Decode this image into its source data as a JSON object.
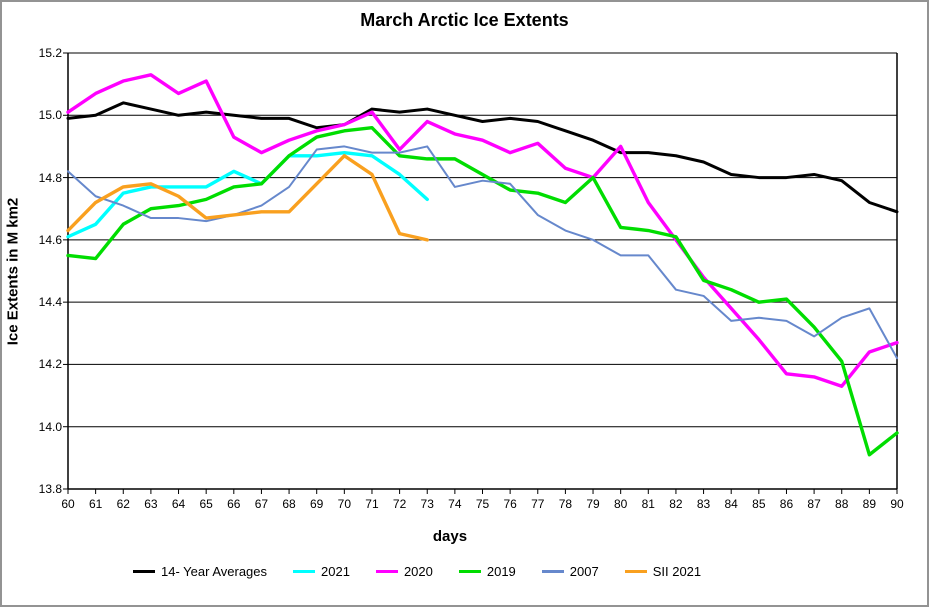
{
  "title": "March Arctic Ice Extents",
  "x_axis_label": "days",
  "y_axis_label": "Ice Extents in M km2",
  "frame_color": "#939393",
  "chart_data": {
    "type": "line",
    "title": "March Arctic Ice Extents",
    "xlabel": "days",
    "ylabel": "Ice Extents in M km2",
    "xlim": [
      60,
      90
    ],
    "ylim": [
      13.8,
      15.2
    ],
    "grid": "horizontal",
    "legend_position": "bottom",
    "x_ticks": [
      60,
      61,
      62,
      63,
      64,
      65,
      66,
      67,
      68,
      69,
      70,
      71,
      72,
      73,
      74,
      75,
      76,
      77,
      78,
      79,
      80,
      81,
      82,
      83,
      84,
      85,
      86,
      87,
      88,
      89,
      90
    ],
    "y_ticks": [
      "13.8",
      "14.0",
      "14.2",
      "14.4",
      "14.6",
      "14.8",
      "15.0",
      "15.2"
    ],
    "series": [
      {
        "name": "14- Year Averages",
        "color": "#000000",
        "stroke_width": 3,
        "x_start": 60,
        "values": [
          14.99,
          15.0,
          15.04,
          15.02,
          15.0,
          15.01,
          15.0,
          14.99,
          14.99,
          14.96,
          14.97,
          15.02,
          15.01,
          15.02,
          15.0,
          14.98,
          14.99,
          14.98,
          14.95,
          14.92,
          14.88,
          14.88,
          14.87,
          14.85,
          14.81,
          14.8,
          14.8,
          14.81,
          14.79,
          14.72,
          14.69
        ]
      },
      {
        "name": "2021",
        "color": "#00ffff",
        "stroke_width": 3.4,
        "x_start": 60,
        "values": [
          14.61,
          14.65,
          14.75,
          14.77,
          14.77,
          14.77,
          14.82,
          14.78,
          14.87,
          14.87,
          14.88,
          14.87,
          14.81,
          14.73
        ]
      },
      {
        "name": "2020",
        "color": "#ff00ff",
        "stroke_width": 3.4,
        "x_start": 60,
        "values": [
          15.01,
          15.07,
          15.11,
          15.13,
          15.07,
          15.11,
          14.93,
          14.88,
          14.92,
          14.95,
          14.97,
          15.01,
          14.89,
          14.98,
          14.94,
          14.92,
          14.88,
          14.91,
          14.83,
          14.8,
          14.9,
          14.72,
          14.6,
          14.48,
          14.38,
          14.28,
          14.17,
          14.16,
          14.13,
          14.24,
          14.27
        ]
      },
      {
        "name": "2019",
        "color": "#00dd00",
        "stroke_width": 3.4,
        "x_start": 60,
        "values": [
          14.55,
          14.54,
          14.65,
          14.7,
          14.71,
          14.73,
          14.77,
          14.78,
          14.87,
          14.93,
          14.95,
          14.96,
          14.87,
          14.86,
          14.86,
          14.81,
          14.76,
          14.75,
          14.72,
          14.8,
          14.64,
          14.63,
          14.61,
          14.47,
          14.44,
          14.4,
          14.41,
          14.32,
          14.21,
          13.91,
          13.98
        ]
      },
      {
        "name": "2007",
        "color": "#6688cc",
        "stroke_width": 2,
        "x_start": 60,
        "values": [
          14.82,
          14.74,
          14.71,
          14.67,
          14.67,
          14.66,
          14.68,
          14.71,
          14.77,
          14.89,
          14.9,
          14.88,
          14.88,
          14.9,
          14.77,
          14.79,
          14.78,
          14.68,
          14.63,
          14.6,
          14.55,
          14.55,
          14.44,
          14.42,
          14.34,
          14.35,
          14.34,
          14.29,
          14.35,
          14.38,
          14.22
        ]
      },
      {
        "name": "SII 2021",
        "color": "#f9a01f",
        "stroke_width": 3.4,
        "x_start": 60,
        "values": [
          14.63,
          14.72,
          14.77,
          14.78,
          14.74,
          14.67,
          14.68,
          14.69,
          14.69,
          14.78,
          14.87,
          14.81,
          14.62,
          14.6
        ]
      }
    ]
  }
}
